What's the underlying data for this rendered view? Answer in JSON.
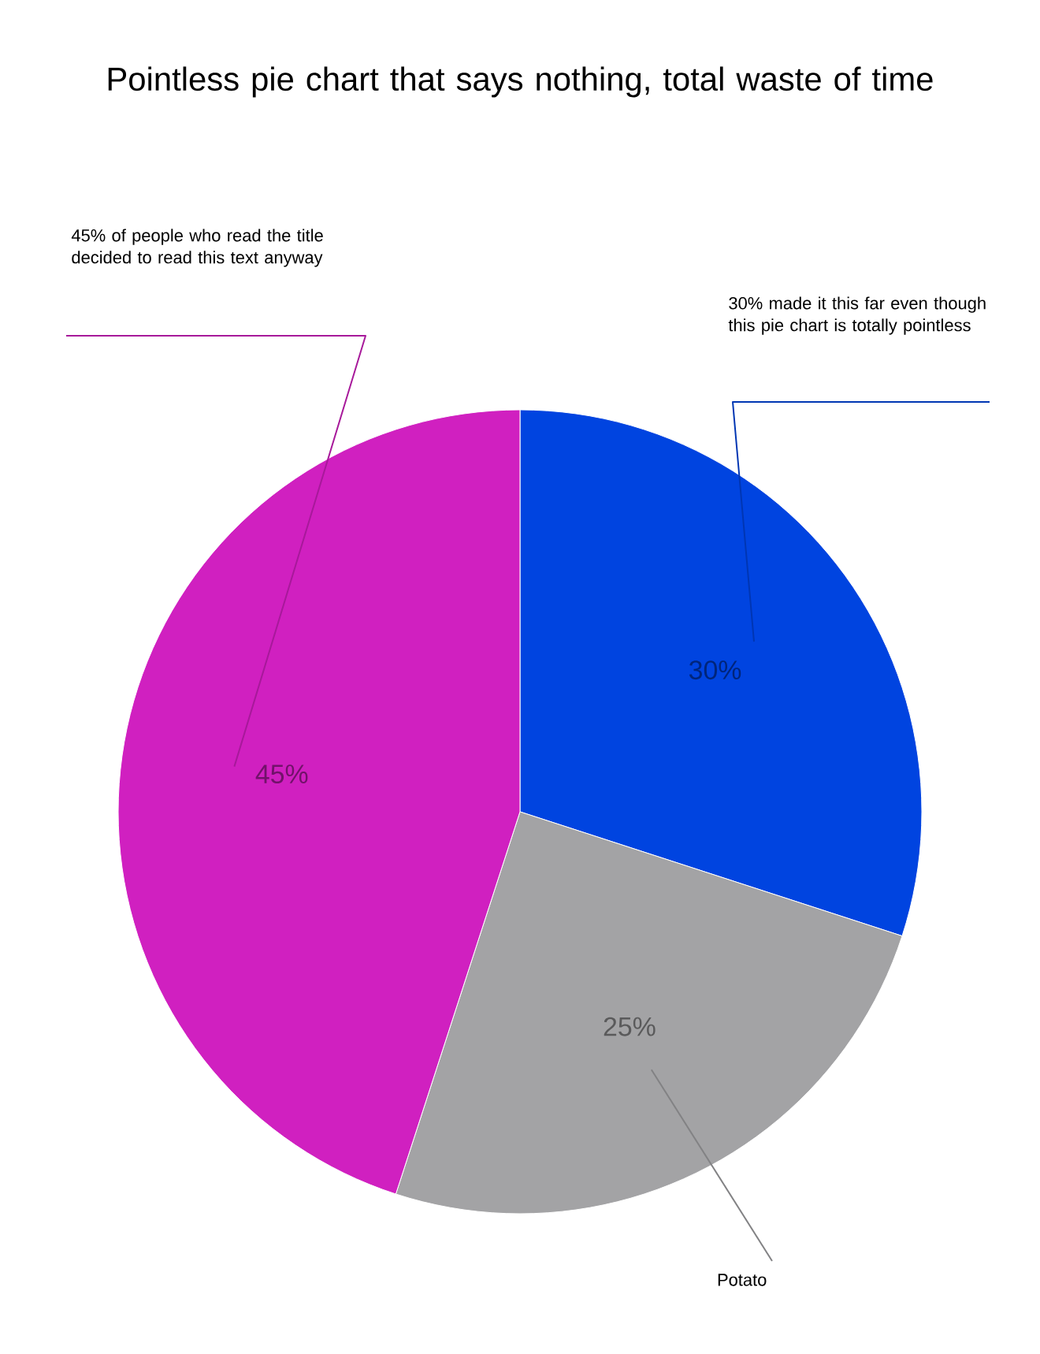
{
  "chart_data": {
    "type": "pie",
    "title": "Pointless pie chart that says nothing, total waste of time",
    "categories": [
      "30% made it this far even though this pie chart is totally pointless",
      "Potato",
      "45% of people who read the title decided to read this text anyway"
    ],
    "values": [
      30,
      25,
      45
    ],
    "value_labels": [
      "30%",
      "25%",
      "45%"
    ],
    "colors": [
      "#0044e0",
      "#a3a3a5",
      "#d020c0"
    ]
  }
}
